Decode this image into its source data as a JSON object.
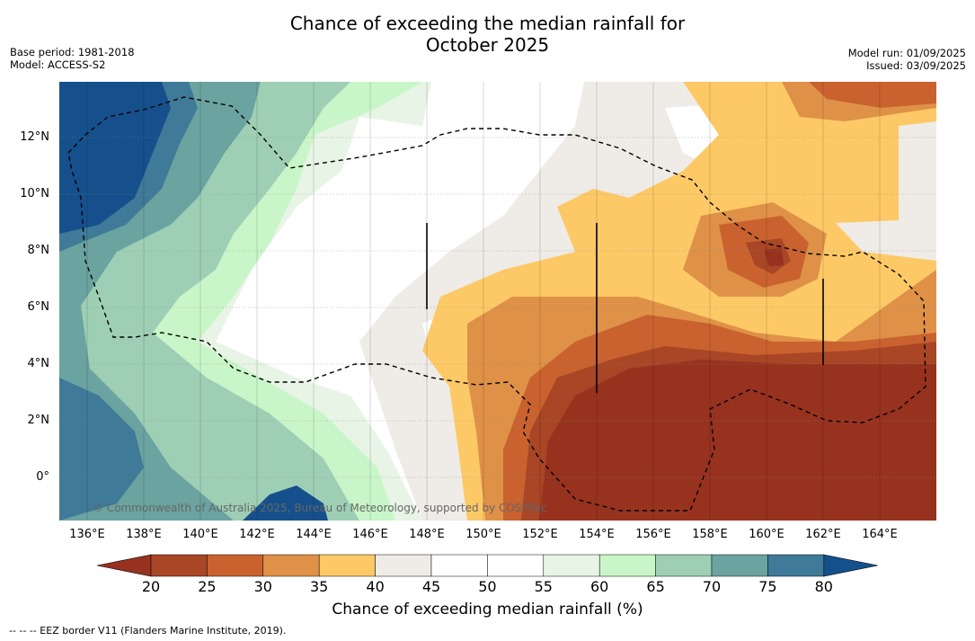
{
  "title_line1": "Chance of exceeding the median rainfall for",
  "title_line2": "October 2025",
  "base_period": "Base period: 1981-2018",
  "model": "Model: ACCESS-S2",
  "model_run": "Model run: 01/09/2025",
  "issued": "Issued: 03/09/2025",
  "copyright": "© Commonwealth of Australia 2025, Bureau of Meteorology, supported by COSPPac",
  "footnote": "-- -- -- EEZ border V11 (Flanders Marine Institute, 2019).",
  "x_ticks": [
    "136°E",
    "138°E",
    "140°E",
    "142°E",
    "144°E",
    "146°E",
    "148°E",
    "150°E",
    "152°E",
    "154°E",
    "156°E",
    "158°E",
    "160°E",
    "162°E",
    "164°E"
  ],
  "y_ticks": [
    "12°N",
    "10°N",
    "8°N",
    "6°N",
    "4°N",
    "2°N",
    "0°"
  ],
  "colorbar": {
    "labels": [
      "20",
      "25",
      "30",
      "35",
      "40",
      "45",
      "50",
      "55",
      "60",
      "65",
      "70",
      "75",
      "80"
    ],
    "colors": [
      "#a84626",
      "#c9622f",
      "#df9148",
      "#fdc966",
      "#efebe6",
      "#ffffff",
      "#ffffff",
      "#e8f4e6",
      "#c9f6c8",
      "#9ecfb5",
      "#6ba3a0",
      "#3f7a98",
      "#16508c"
    ],
    "low_extend_color": "#97321f",
    "high_extend_color": "#14508c",
    "title": "Chance of exceeding median rainfall (%)"
  }
}
